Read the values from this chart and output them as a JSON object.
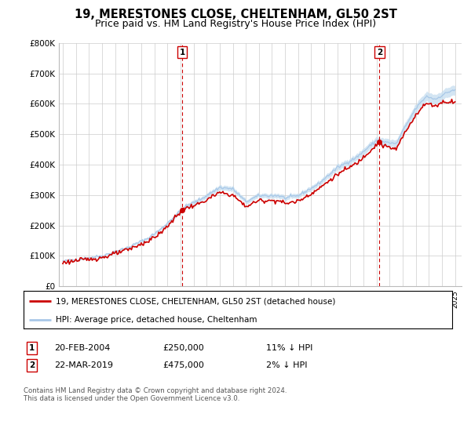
{
  "title": "19, MERESTONES CLOSE, CHELTENHAM, GL50 2ST",
  "subtitle": "Price paid vs. HM Land Registry's House Price Index (HPI)",
  "legend_line1": "19, MERESTONES CLOSE, CHELTENHAM, GL50 2ST (detached house)",
  "legend_line2": "HPI: Average price, detached house, Cheltenham",
  "sale1_label": "1",
  "sale1_date": "20-FEB-2004",
  "sale1_price": "£250,000",
  "sale1_hpi": "11% ↓ HPI",
  "sale1_year": 2004.13,
  "sale1_value": 250000,
  "sale2_label": "2",
  "sale2_date": "22-MAR-2019",
  "sale2_price": "£475,000",
  "sale2_hpi": "2% ↓ HPI",
  "sale2_year": 2019.22,
  "sale2_value": 475000,
  "footer": "Contains HM Land Registry data © Crown copyright and database right 2024.\nThis data is licensed under the Open Government Licence v3.0.",
  "ylim": [
    0,
    800000
  ],
  "yticks": [
    0,
    100000,
    200000,
    300000,
    400000,
    500000,
    600000,
    700000,
    800000
  ],
  "ytick_labels": [
    "£0",
    "£100K",
    "£200K",
    "£300K",
    "£400K",
    "£500K",
    "£600K",
    "£700K",
    "£800K"
  ],
  "xlim_start": 1994.7,
  "xlim_end": 2025.5,
  "hpi_color": "#a8c8e8",
  "hpi_fill_color": "#c8dff0",
  "price_color": "#cc0000",
  "sale_marker_color": "#cc0000",
  "vline_color": "#cc0000",
  "bg_color": "#ffffff",
  "grid_color": "#cccccc",
  "title_fontsize": 10.5,
  "subtitle_fontsize": 9
}
